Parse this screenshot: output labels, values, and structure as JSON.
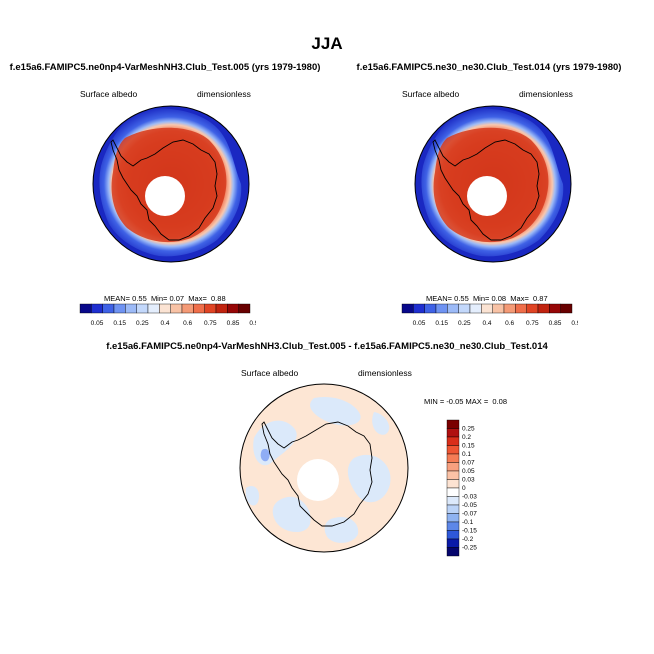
{
  "title": "JJA",
  "panels": [
    {
      "id": "test",
      "title": "f.e15a6.FAMIPC5.ne0np4-VarMeshNH3.Club_Test.005 (yrs 1979-1980)",
      "variable": "Surface albedo",
      "units": "dimensionless",
      "stats": {
        "mean_label": "MEAN=",
        "mean": "0.55",
        "min_label": "Min=",
        "min": "0.07",
        "max_label": "Max=",
        "max": "0.88"
      }
    },
    {
      "id": "control",
      "title": "f.e15a6.FAMIPC5.ne30_ne30.Club_Test.014 (yrs 1979-1980)",
      "variable": "Surface albedo",
      "units": "dimensionless",
      "stats": {
        "mean_label": "MEAN=",
        "mean": "0.55",
        "min_label": "Min=",
        "min": "0.08",
        "max_label": "Max=",
        "max": "0.87"
      }
    },
    {
      "id": "diff",
      "title": "f.e15a6.FAMIPC5.ne0np4-VarMeshNH3.Club_Test.005 - f.e15a6.FAMIPC5.ne30_ne30.Club_Test.014",
      "variable": "Surface albedo",
      "units": "dimensionless",
      "stats": {
        "min_label": "MIN =",
        "min": "-0.05",
        "max_label": "MAX =",
        "max": "0.08"
      }
    }
  ],
  "colorbar_abs": {
    "labels": [
      "0.05",
      "0.15",
      "0.25",
      "0.4",
      "0.6",
      "0.75",
      "0.85",
      "0.95"
    ],
    "colors": [
      "#08088a",
      "#1f2fd0",
      "#3f62e6",
      "#6f93f2",
      "#9cbaf7",
      "#c3d8fb",
      "#e4eefd",
      "#fbe3d3",
      "#f8c2a5",
      "#f49a76",
      "#ef6e4a",
      "#e04424",
      "#c1230f",
      "#960606",
      "#680000"
    ]
  },
  "colorbar_diff": {
    "labels": [
      "0.25",
      "0.2",
      "0.15",
      "0.1",
      "0.07",
      "0.05",
      "0.03",
      "0",
      "-0.03",
      "-0.05",
      "-0.07",
      "-0.1",
      "-0.15",
      "-0.2",
      "-0.25"
    ],
    "colors": [
      "#7a0000",
      "#b01010",
      "#d92e1a",
      "#ee5533",
      "#f57c55",
      "#f8a07f",
      "#fbc2a6",
      "#fde3d2",
      "#ffffff",
      "#dce9fb",
      "#bbd3f7",
      "#8fb3f1",
      "#5d87e8",
      "#2e58d9",
      "#0a1aa8",
      "#05056d"
    ]
  },
  "colors": {
    "land_outline": "#000000",
    "pole_hole": "#ffffff",
    "diff_background": "#fde6d4",
    "diff_patch": "#dbe9fa"
  }
}
